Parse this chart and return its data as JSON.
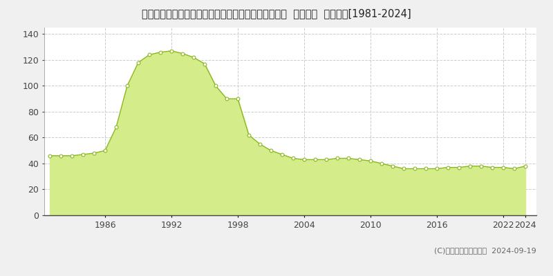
{
  "title": "東京都西多摩郡瑞穂町大字箱根ケ崎字狭山１８８番６  公示地価  地価推移[1981-2024]",
  "years": [
    1981,
    1982,
    1983,
    1984,
    1985,
    1986,
    1987,
    1988,
    1989,
    1990,
    1991,
    1992,
    1993,
    1994,
    1995,
    1996,
    1997,
    1998,
    1999,
    2000,
    2001,
    2002,
    2003,
    2004,
    2005,
    2006,
    2007,
    2008,
    2009,
    2010,
    2011,
    2012,
    2013,
    2014,
    2015,
    2016,
    2017,
    2018,
    2019,
    2020,
    2021,
    2022,
    2023,
    2024
  ],
  "values": [
    46,
    46,
    46,
    47,
    48,
    50,
    68,
    100,
    118,
    124,
    126,
    127,
    125,
    122,
    117,
    100,
    90,
    90,
    62,
    55,
    50,
    47,
    44,
    43,
    43,
    43,
    44,
    44,
    43,
    42,
    40,
    38,
    36,
    36,
    36,
    36,
    37,
    37,
    38,
    38,
    37,
    37,
    36,
    38
  ],
  "fill_color": "#d4ed8a",
  "line_color": "#8ab820",
  "marker_edge_color": "#8ab820",
  "plot_bg_color": "#ffffff",
  "outer_bg_color": "#f0f0f0",
  "grid_color": "#cccccc",
  "ylabel_ticks": [
    0,
    20,
    40,
    60,
    80,
    100,
    120,
    140
  ],
  "ylim": [
    0,
    145
  ],
  "xlim": [
    1980.5,
    2025
  ],
  "x_ticks": [
    1986,
    1992,
    1998,
    2004,
    2010,
    2016,
    2022,
    2024
  ],
  "copyright_text": "(C)土地価格ドットコム  2024-09-19",
  "title_fontsize": 10.5,
  "tick_fontsize": 9,
  "legend_fontsize": 9,
  "copyright_fontsize": 8
}
